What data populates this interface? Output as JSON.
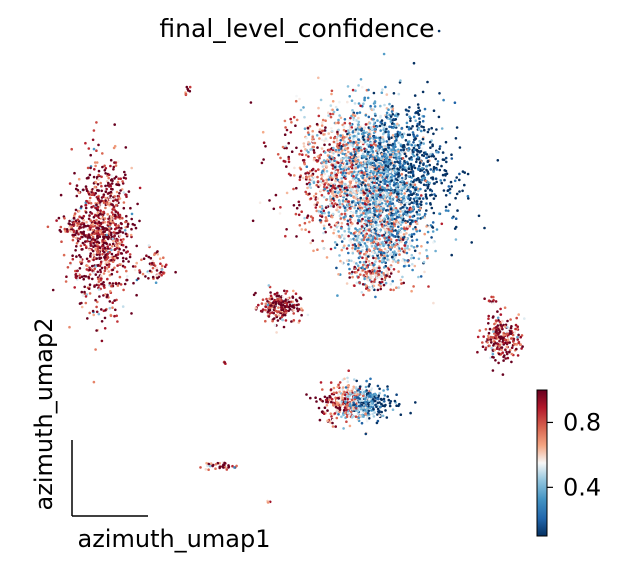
{
  "chart_data": {
    "type": "scatter",
    "title": "final_level_confidence",
    "xlabel": "azimuth_umap1",
    "ylabel": "azimuth_umap2",
    "colorbar": {
      "colormap": "RdBu_r",
      "range": [
        0.1,
        1.0
      ],
      "tick_labels": [
        "0.8",
        "0.4"
      ],
      "tick_values": [
        0.8,
        0.4
      ]
    },
    "colors": {
      "low": "#1e4f8f",
      "mid": "#f3efe9",
      "high": "#7f1117"
    },
    "clusters": [
      {
        "id": "left-large",
        "cx": -7.2,
        "cy": 5.6,
        "sx": 0.65,
        "sy": 1.7,
        "n": 900,
        "mean": 0.9
      },
      {
        "id": "left-blob-small-a",
        "cx": -8.5,
        "cy": 5.9,
        "sx": 0.25,
        "sy": 0.2,
        "n": 60,
        "mean": 0.9
      },
      {
        "id": "left-dot-a",
        "cx": -8.3,
        "cy": 3.7,
        "sx": 0.08,
        "sy": 0.1,
        "n": 15,
        "mean": 0.9
      },
      {
        "id": "left-satellite",
        "cx": -4.9,
        "cy": 3.9,
        "sx": 0.35,
        "sy": 0.4,
        "n": 60,
        "mean": 0.75
      },
      {
        "id": "top-dot",
        "cx": -3.4,
        "cy": 12.1,
        "sx": 0.08,
        "sy": 0.08,
        "n": 8,
        "mean": 0.9
      },
      {
        "id": "right-large",
        "cx": 4.9,
        "cy": 8.4,
        "sx": 1.6,
        "sy": 1.5,
        "n": 2600,
        "mean": 0.4
      },
      {
        "id": "right-lower-arm",
        "cx": 5.4,
        "cy": 5.4,
        "sx": 0.9,
        "sy": 1.0,
        "n": 700,
        "mean": 0.5
      },
      {
        "id": "right-tail",
        "cx": 4.7,
        "cy": 3.6,
        "sx": 0.5,
        "sy": 0.35,
        "n": 120,
        "mean": 0.75
      },
      {
        "id": "middle-small",
        "cx": 0.8,
        "cy": 2.2,
        "sx": 0.45,
        "sy": 0.35,
        "n": 220,
        "mean": 0.92
      },
      {
        "id": "right-edge",
        "cx": 10.8,
        "cy": 0.8,
        "sx": 0.4,
        "sy": 0.5,
        "n": 230,
        "mean": 0.9
      },
      {
        "id": "right-edge-dot",
        "cx": 10.3,
        "cy": 2.5,
        "sx": 0.08,
        "sy": 0.1,
        "n": 10,
        "mean": 0.85
      },
      {
        "id": "bottom-middle",
        "cx": 4.2,
        "cy": -2.2,
        "sx": 0.75,
        "sy": 0.45,
        "n": 520,
        "mean": 0.5
      },
      {
        "id": "bottom-streak",
        "cx": -1.9,
        "cy": -5.1,
        "sx": 0.35,
        "sy": 0.12,
        "n": 40,
        "mean": 0.9
      },
      {
        "id": "small-dot-b",
        "cx": -1.7,
        "cy": -0.3,
        "sx": 0.05,
        "sy": 0.06,
        "n": 6,
        "mean": 0.9
      },
      {
        "id": "small-dot-c",
        "cx": 0.3,
        "cy": -6.7,
        "sx": 0.05,
        "sy": 0.05,
        "n": 5,
        "mean": 0.9
      }
    ],
    "xlim": [
      -10,
      12.5
    ],
    "ylim": [
      -8,
      13.5
    ]
  }
}
